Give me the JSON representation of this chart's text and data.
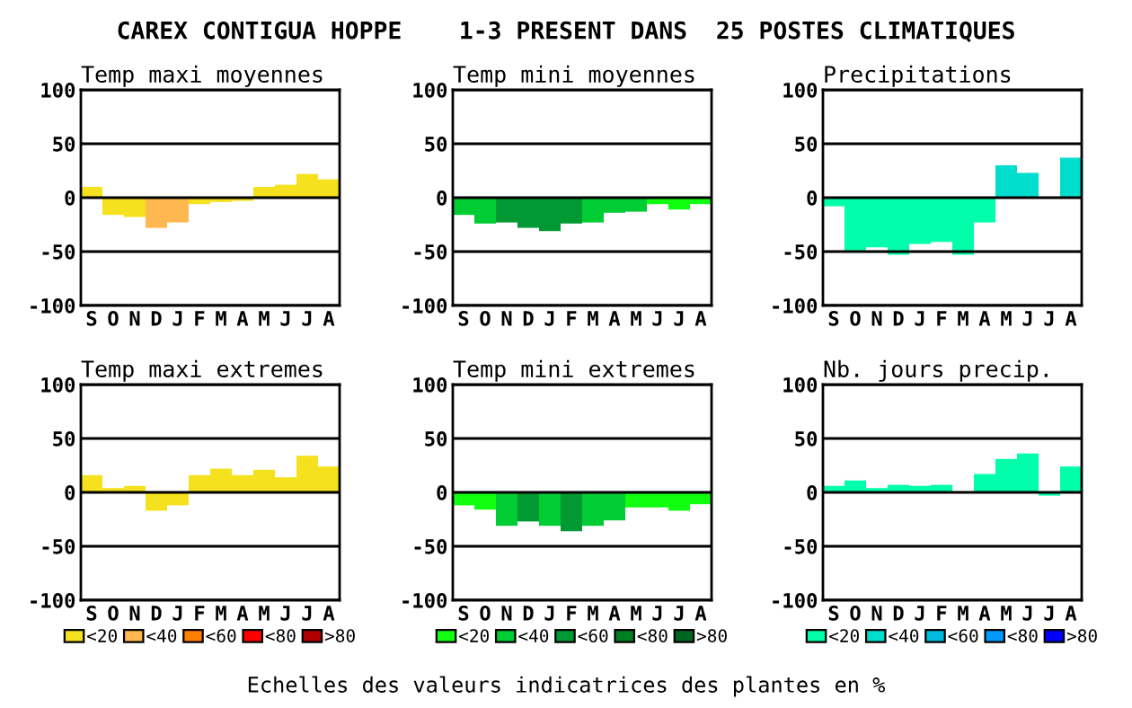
{
  "chart_data": [
    {
      "type": "bar",
      "title": "Temp maxi moyennes",
      "annotations": [
        "CAREX CONTIGUA HOPPE    1-3 PRESENT DANS  25 POSTES CLIMATIQUES"
      ],
      "categories": [
        "S",
        "O",
        "N",
        "D",
        "J",
        "F",
        "M",
        "A",
        "M",
        "J",
        "J",
        "A"
      ],
      "values": [
        10,
        -16,
        -18,
        -28,
        -23,
        -6,
        -4,
        -3,
        10,
        12,
        22,
        17
      ],
      "colors": [
        "#f5e11e",
        "#f5e11e",
        "#f5e11e",
        "#ffb850",
        "#ffb850",
        "#f5e11e",
        "#f5e11e",
        "#f5e11e",
        "#f5e11e",
        "#f5e11e",
        "#f5e11e",
        "#f5e11e"
      ],
      "ylim": [
        -100,
        100
      ],
      "yticks": [
        -100,
        -50,
        0,
        50,
        100
      ],
      "grid": "y"
    },
    {
      "type": "bar",
      "title": "Temp mini moyennes",
      "categories": [
        "S",
        "O",
        "N",
        "D",
        "J",
        "F",
        "M",
        "A",
        "M",
        "J",
        "J",
        "A"
      ],
      "values": [
        -16,
        -24,
        -23,
        -28,
        -31,
        -24,
        -23,
        -14,
        -13,
        -6,
        -11,
        -6
      ],
      "colors": [
        "#00cc33",
        "#00cc33",
        "#009933",
        "#009933",
        "#009933",
        "#009933",
        "#00cc33",
        "#00cc33",
        "#00cc33",
        "#11ff11",
        "#11ff11",
        "#11ff11"
      ],
      "ylim": [
        -100,
        100
      ],
      "yticks": [
        -100,
        -50,
        0,
        50,
        100
      ],
      "grid": "y"
    },
    {
      "type": "bar",
      "title": "Precipitations",
      "categories": [
        "S",
        "O",
        "N",
        "D",
        "J",
        "F",
        "M",
        "A",
        "M",
        "J",
        "J",
        "A"
      ],
      "values": [
        -8,
        -49,
        -46,
        -53,
        -43,
        -41,
        -53,
        -23,
        30,
        23,
        null,
        37
      ],
      "colors": [
        "#00ffaa",
        "#00ffaa",
        "#00ffaa",
        "#00ffaa",
        "#00ffaa",
        "#00ffaa",
        "#00ffaa",
        "#00ffaa",
        "#00ddcc",
        "#00ddcc",
        "#00ddcc",
        "#00ddcc"
      ],
      "ylim": [
        -100,
        100
      ],
      "yticks": [
        -100,
        -50,
        0,
        50,
        100
      ],
      "grid": "y"
    },
    {
      "type": "bar",
      "title": "Temp maxi extremes",
      "categories": [
        "S",
        "O",
        "N",
        "D",
        "J",
        "F",
        "M",
        "A",
        "M",
        "J",
        "J",
        "A"
      ],
      "series": [
        {
          "name": "<20",
          "color": "#f5e11e",
          "values": [
            16,
            4,
            6,
            -17,
            -12,
            16,
            22,
            16,
            21,
            14,
            34,
            24
          ]
        },
        {
          "name": "<40",
          "color": "#ffb850",
          "values": [
            null,
            null,
            null,
            null,
            null,
            null,
            null,
            null,
            null,
            null,
            null,
            null
          ]
        },
        {
          "name": "<60",
          "color": "#ff8000",
          "values": [
            null,
            null,
            null,
            null,
            null,
            null,
            null,
            null,
            null,
            null,
            null,
            null
          ]
        },
        {
          "name": "<80",
          "color": "#ff0000",
          "values": [
            null,
            null,
            null,
            null,
            null,
            null,
            null,
            null,
            null,
            null,
            null,
            null
          ]
        },
        {
          "name": ">80",
          "color": "#b00000",
          "values": [
            null,
            null,
            null,
            null,
            null,
            null,
            null,
            null,
            null,
            null,
            null,
            null
          ]
        }
      ],
      "legend": "bottom",
      "ylim": [
        -100,
        100
      ],
      "yticks": [
        -100,
        -50,
        0,
        50,
        100
      ],
      "grid": "y"
    },
    {
      "type": "bar",
      "title": "Temp mini extremes",
      "annotations": [
        "Echelles des valeurs indicatrices des plantes en %"
      ],
      "categories": [
        "S",
        "O",
        "N",
        "D",
        "J",
        "F",
        "M",
        "A",
        "M",
        "J",
        "J",
        "A"
      ],
      "series": [
        {
          "name": "<20",
          "color": "#11ff11",
          "values": [
            -12,
            -16,
            null,
            null,
            null,
            null,
            null,
            null,
            -14,
            -14,
            -17,
            -11
          ]
        },
        {
          "name": "<40",
          "color": "#00cc33",
          "values": [
            null,
            null,
            -31,
            null,
            -31,
            null,
            -31,
            -26,
            null,
            null,
            null,
            null
          ]
        },
        {
          "name": "<60",
          "color": "#009933",
          "values": [
            null,
            null,
            null,
            -27,
            null,
            -36,
            null,
            null,
            null,
            null,
            null,
            null
          ]
        },
        {
          "name": "<80",
          "color": "#008020",
          "values": [
            null,
            null,
            null,
            null,
            null,
            null,
            null,
            null,
            null,
            null,
            null,
            null
          ]
        },
        {
          "name": ">80",
          "color": "#006622",
          "values": [
            null,
            null,
            null,
            null,
            null,
            null,
            null,
            null,
            null,
            null,
            null,
            null
          ]
        }
      ],
      "legend": "bottom",
      "ylim": [
        -100,
        100
      ],
      "yticks": [
        -100,
        -50,
        0,
        50,
        100
      ],
      "grid": "y"
    },
    {
      "type": "bar",
      "title": "Nb. jours precip.",
      "categories": [
        "S",
        "O",
        "N",
        "D",
        "J",
        "F",
        "M",
        "A",
        "M",
        "J",
        "J",
        "A"
      ],
      "series": [
        {
          "name": "<20",
          "color": "#00ffaa",
          "values": [
            6,
            11,
            4,
            7,
            6,
            7,
            null,
            17,
            31,
            36,
            -3,
            24
          ]
        },
        {
          "name": "<40",
          "color": "#00ddcc",
          "values": [
            null,
            null,
            null,
            null,
            null,
            null,
            null,
            null,
            null,
            null,
            null,
            null
          ]
        },
        {
          "name": "<60",
          "color": "#00bbdd",
          "values": [
            null,
            null,
            null,
            null,
            null,
            null,
            null,
            null,
            null,
            null,
            null,
            null
          ]
        },
        {
          "name": "<80",
          "color": "#0099ff",
          "values": [
            null,
            null,
            null,
            null,
            null,
            null,
            null,
            null,
            null,
            null,
            null,
            null
          ]
        },
        {
          "name": ">80",
          "color": "#0000ff",
          "values": [
            null,
            null,
            null,
            null,
            null,
            null,
            null,
            null,
            null,
            null,
            null,
            null
          ]
        }
      ],
      "legend": "bottom",
      "ylim": [
        -100,
        100
      ],
      "yticks": [
        -100,
        -50,
        0,
        50,
        100
      ],
      "grid": "y"
    }
  ]
}
